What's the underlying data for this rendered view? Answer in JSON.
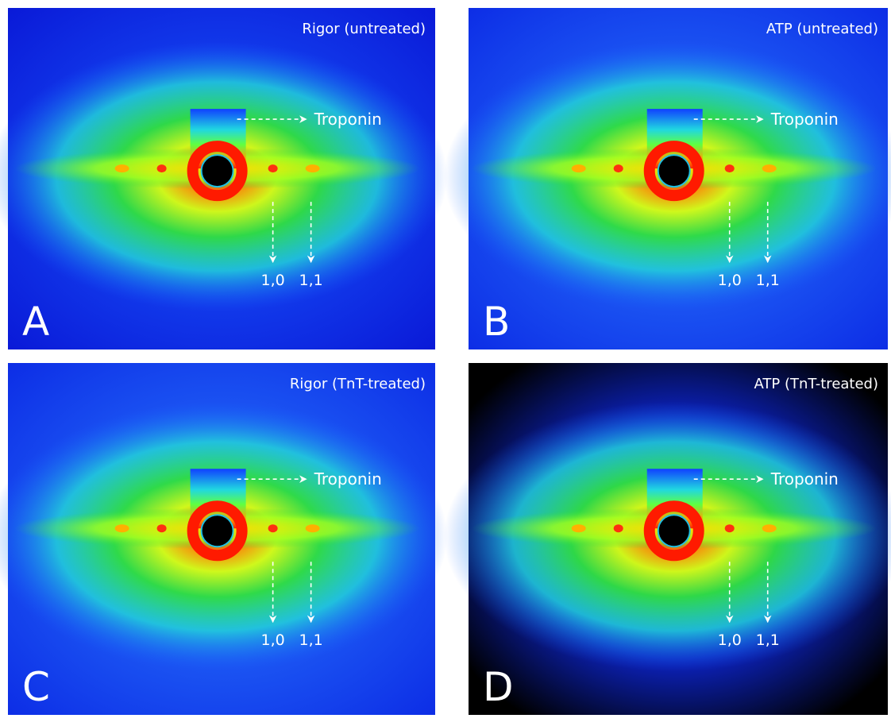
{
  "panels": [
    {
      "letter": "A",
      "title": "Rigor (untreated)",
      "troponin": "Troponin",
      "reflection_10": "1,0",
      "reflection_11": "1,1"
    },
    {
      "letter": "B",
      "title": "ATP (untreated)",
      "troponin": "Troponin",
      "reflection_10": "1,0",
      "reflection_11": "1,1"
    },
    {
      "letter": "C",
      "title": "Rigor (TnT-treated)",
      "troponin": "Troponin",
      "reflection_10": "1,0",
      "reflection_11": "1,1"
    },
    {
      "letter": "D",
      "title": "ATP (TnT-treated)",
      "troponin": "Troponin",
      "reflection_10": "1,0",
      "reflection_11": "1,1"
    }
  ]
}
